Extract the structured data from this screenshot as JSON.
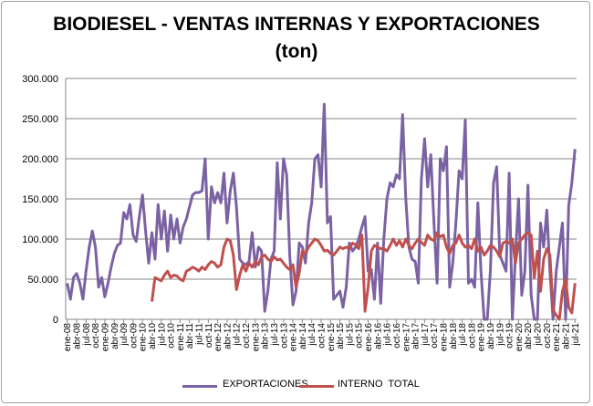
{
  "chart_data": {
    "type": "line",
    "title": "BIODIESEL - VENTAS INTERNAS Y EXPORTACIONES",
    "subtitle": "(ton)",
    "xlabel": "",
    "ylabel": "",
    "ylim": [
      0,
      300000
    ],
    "grid": true,
    "legend_position": "bottom",
    "start_month": "ene-08",
    "y_tick_labels": [
      "0",
      "50.000",
      "100.000",
      "150.000",
      "200.000",
      "250.000",
      "300.000"
    ],
    "y_tick_values": [
      0,
      50000,
      100000,
      150000,
      200000,
      250000,
      300000
    ],
    "x_tick_labels": [
      "ene-08",
      "abr-08",
      "jul-08",
      "oct-08",
      "ene-09",
      "abr-09",
      "jul-09",
      "oct-09",
      "ene-10",
      "abr-10",
      "jul-10",
      "oct-10",
      "ene-11",
      "abr-11",
      "jul-11",
      "oct-11",
      "ene-12",
      "abr-12",
      "jul-12",
      "oct-12",
      "ene-13",
      "abr-13",
      "jul-13",
      "oct-13",
      "ene-14",
      "abr-14",
      "jul-14",
      "oct-14",
      "ene-15",
      "abr-15",
      "jul-15",
      "oct-15",
      "ene-16",
      "abr-16",
      "jul-16",
      "oct-16",
      "ene-17",
      "abr-17",
      "jul-17",
      "oct-17",
      "ene-18",
      "abr-18",
      "jul-18",
      "oct-18",
      "ene-19",
      "abr-19",
      "jul-19",
      "oct-19",
      "ene-20",
      "abr-20",
      "jul-20",
      "oct-20",
      "ene-21",
      "abr-21",
      "jul-21"
    ],
    "series": [
      {
        "name": "EXPORTACIONES",
        "color": "#7b62a3",
        "start_index": 0,
        "unit": "thousand ton",
        "values": [
          45,
          25,
          52,
          57,
          45,
          25,
          60,
          90,
          110,
          90,
          40,
          52,
          28,
          45,
          65,
          82,
          92,
          95,
          133,
          125,
          143,
          105,
          97,
          128,
          155,
          110,
          70,
          108,
          75,
          143,
          100,
          135,
          85,
          130,
          100,
          125,
          95,
          115,
          125,
          140,
          155,
          158,
          158,
          160,
          200,
          100,
          165,
          145,
          158,
          145,
          182,
          120,
          160,
          182,
          140,
          75,
          70,
          68,
          72,
          108,
          65,
          90,
          85,
          10,
          35,
          75,
          85,
          195,
          125,
          200,
          180,
          80,
          18,
          35,
          95,
          90,
          70,
          120,
          145,
          200,
          205,
          165,
          268,
          120,
          128,
          25,
          30,
          35,
          15,
          40,
          95,
          85,
          90,
          100,
          115,
          128,
          60,
          62,
          25,
          95,
          20,
          100,
          150,
          170,
          165,
          180,
          175,
          255,
          150,
          90,
          75,
          72,
          45,
          175,
          225,
          165,
          205,
          120,
          45,
          200,
          185,
          215,
          40,
          70,
          120,
          185,
          175,
          248,
          45,
          50,
          40,
          145,
          60,
          0,
          0,
          60,
          170,
          190,
          80,
          70,
          60,
          182,
          0,
          80,
          150,
          30,
          60,
          167,
          30,
          0,
          0,
          120,
          90,
          136,
          60,
          0,
          60,
          90,
          120,
          0,
          142,
          170,
          212
        ]
      },
      {
        "name": "INTERNO  TOTAL",
        "color": "#c0504d",
        "start_index": 27,
        "unit": "thousand ton",
        "values": [
          22,
          52,
          50,
          48,
          55,
          60,
          52,
          55,
          54,
          50,
          48,
          60,
          62,
          65,
          63,
          60,
          65,
          62,
          68,
          72,
          70,
          65,
          68,
          90,
          100,
          98,
          80,
          37,
          55,
          68,
          60,
          70,
          65,
          72,
          68,
          78,
          80,
          75,
          72,
          78,
          74,
          75,
          70,
          65,
          62,
          68,
          40,
          58,
          85,
          82,
          90,
          95,
          100,
          98,
          92,
          85,
          86,
          82,
          80,
          85,
          90,
          88,
          90,
          88,
          95,
          93,
          88,
          105,
          10,
          40,
          85,
          92,
          90,
          88,
          88,
          85,
          92,
          100,
          92,
          98,
          90,
          100,
          92,
          88,
          95,
          100,
          96,
          92,
          105,
          100,
          98,
          108,
          103,
          105,
          90,
          82,
          92,
          95,
          105,
          95,
          90,
          92,
          88,
          100,
          85,
          90,
          80,
          85,
          92,
          90,
          85,
          78,
          95,
          97,
          95,
          100,
          70,
          95,
          100,
          105,
          108,
          105,
          52,
          85,
          35,
          75,
          88,
          80,
          12,
          5,
          0,
          35,
          50,
          15,
          8,
          45
        ]
      }
    ]
  }
}
